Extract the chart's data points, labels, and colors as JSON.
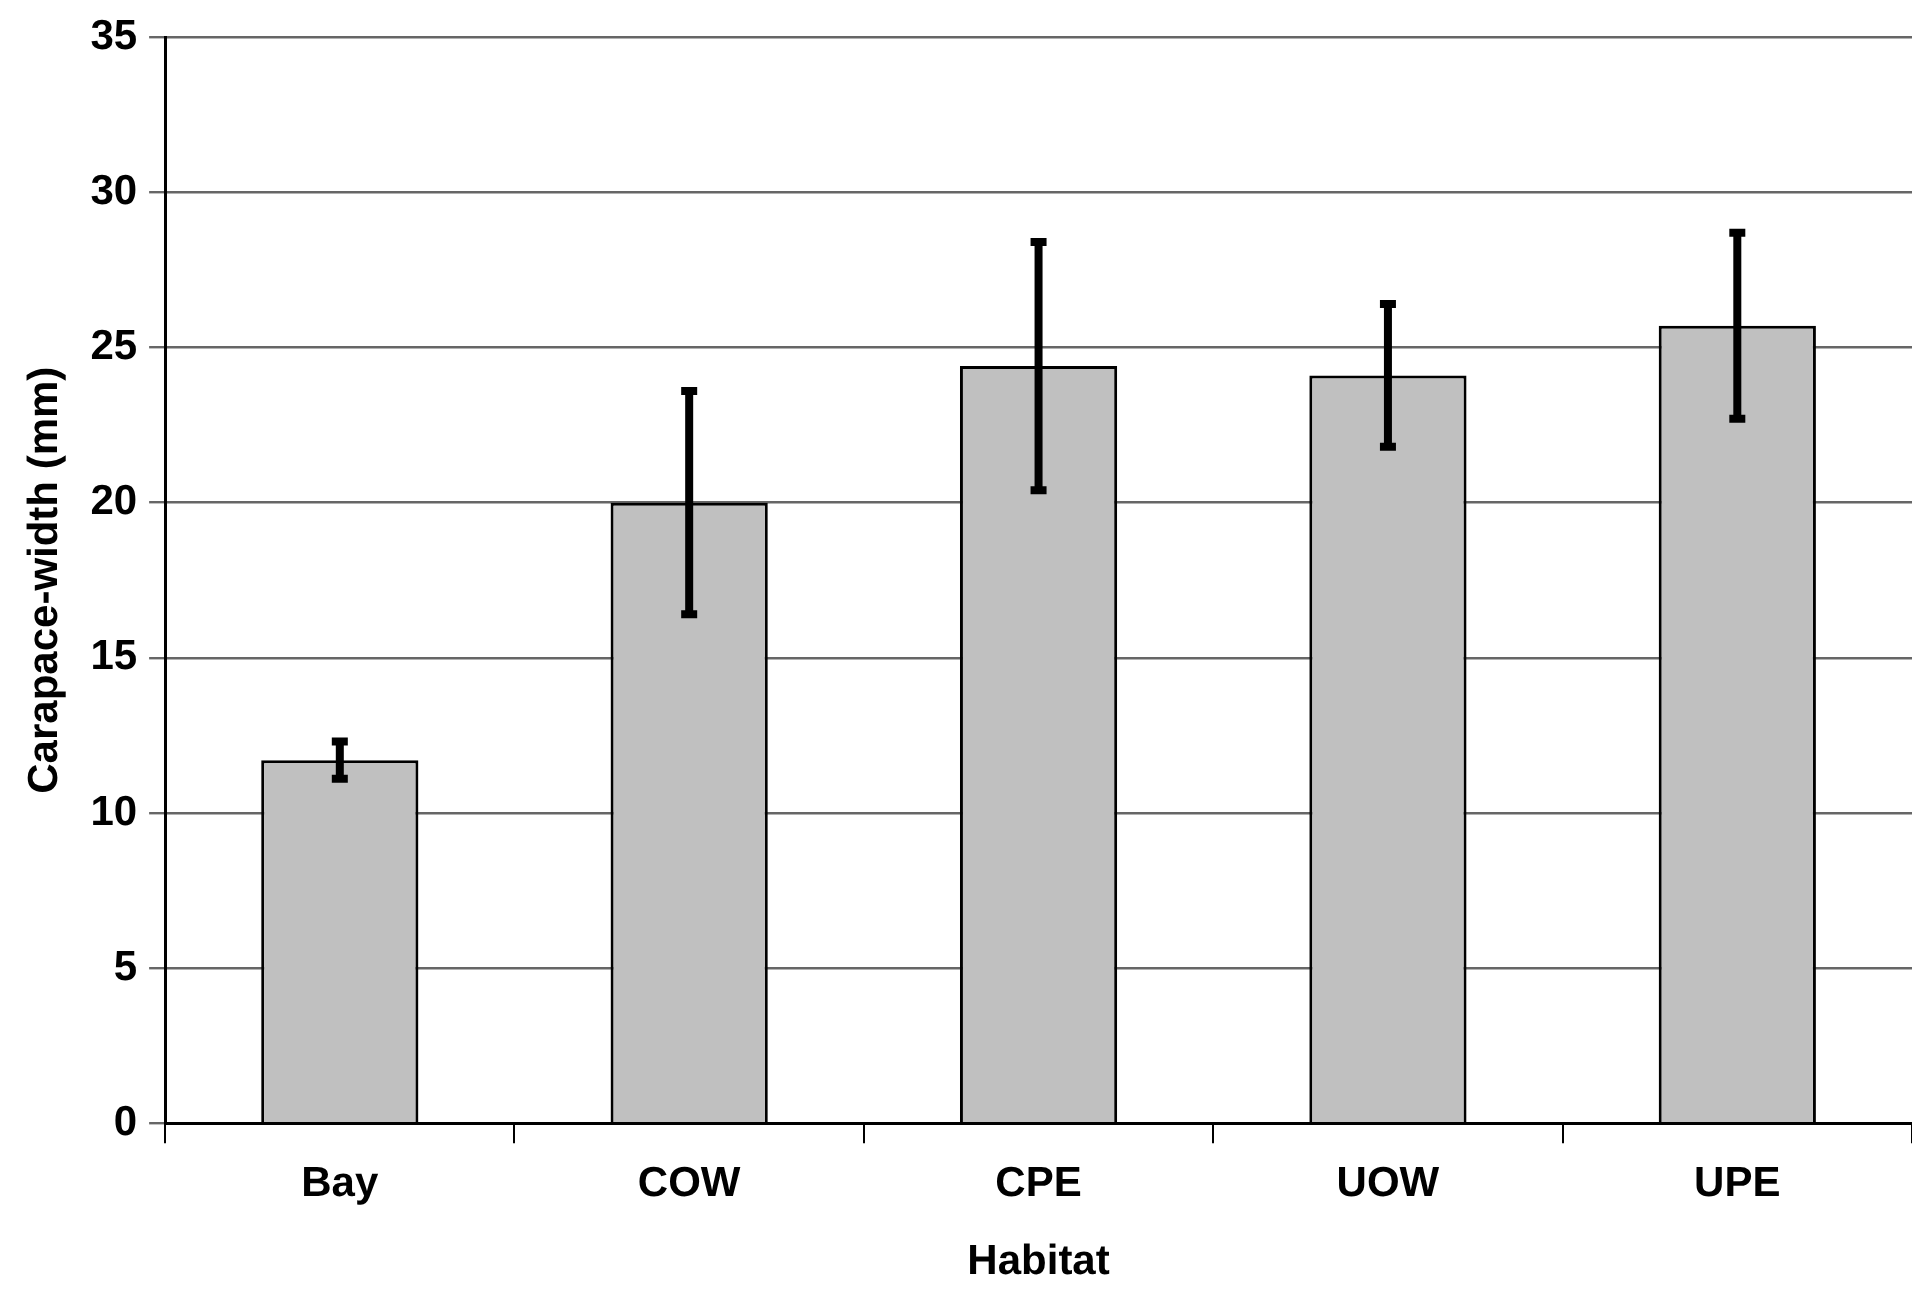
{
  "chart_data": {
    "type": "bar",
    "xlabel": "Habitat",
    "ylabel": "Carapace-width (mm)",
    "categories": [
      "Bay",
      "COW",
      "CPE",
      "UOW",
      "UPE"
    ],
    "values": [
      11.7,
      20.0,
      24.4,
      24.1,
      25.7
    ],
    "errors": [
      0.6,
      3.6,
      4.0,
      2.3,
      3.0
    ],
    "color": "#c0c0c0",
    "ylim": [
      0,
      35
    ],
    "yticks": [
      0,
      5,
      10,
      15,
      20,
      25,
      30,
      35
    ],
    "grid": "y",
    "legend": false
  }
}
